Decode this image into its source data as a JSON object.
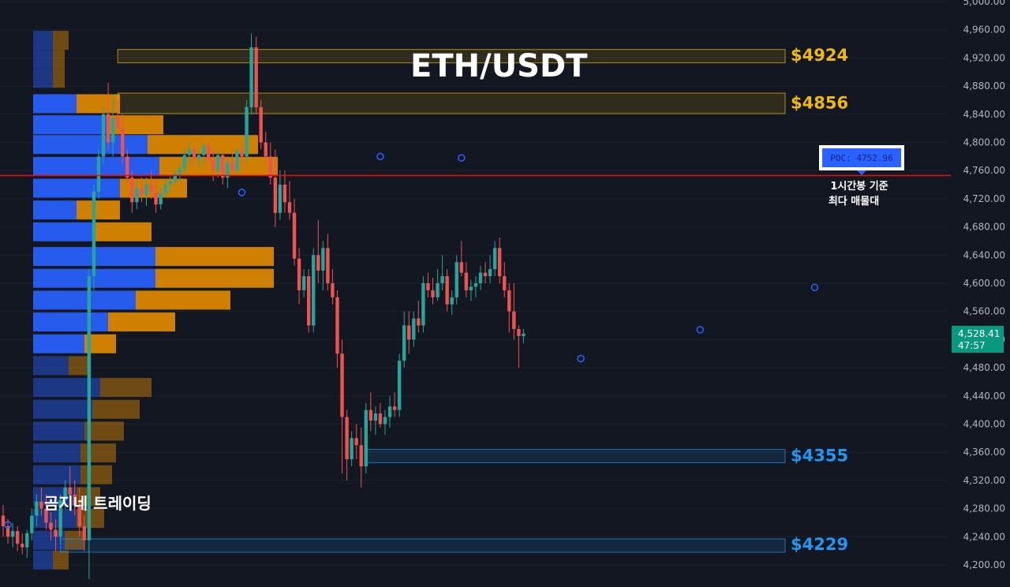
{
  "chart_data": {
    "type": "candlestick",
    "title": "ETH/USDT",
    "ylim": [
      4191,
      5000
    ],
    "y_ticks": [
      "4,200.00",
      "4,240.00",
      "4,280.00",
      "4,320.00",
      "4,360.00",
      "4,400.00",
      "4,440.00",
      "4,480.00",
      "4,520.00",
      "4,560.00",
      "4,600.00",
      "4,640.00",
      "4,680.00",
      "4,720.00",
      "4,760.00",
      "4,800.00",
      "4,840.00",
      "4,880.00",
      "4,920.00",
      "4,960.00",
      "5,000.00"
    ],
    "y_tick_values": [
      4200,
      4240,
      4280,
      4320,
      4360,
      4400,
      4440,
      4480,
      4520,
      4560,
      4600,
      4640,
      4680,
      4720,
      4760,
      4800,
      4840,
      4880,
      4920,
      4960,
      5000
    ],
    "current_price": {
      "price": "4,528.41",
      "countdown": "47:57",
      "value": 4528.41
    },
    "poc": {
      "label": "POC: 4752.96",
      "value": 4752.96,
      "note_line1": "1시간봉 기준",
      "note_line2": "최다 매물대"
    },
    "levels": [
      {
        "label": "$4924",
        "value": 4924,
        "low": 4913,
        "high": 4932,
        "color": "#f0b90b",
        "start": 24
      },
      {
        "label": "$4856",
        "value": 4856,
        "low": 4841,
        "high": 4870,
        "color": "#f0b90b",
        "start": 24
      },
      {
        "label": "$4355",
        "value": 4355,
        "low": 4345,
        "high": 4364,
        "color": "#2196f3",
        "start": 76
      },
      {
        "label": "$4229",
        "value": 4229,
        "low": 4218,
        "high": 4237,
        "color": "#2196f3",
        "start": 12
      }
    ],
    "candles": [
      [
        4270,
        4285,
        4240,
        4255
      ],
      [
        4255,
        4265,
        4230,
        4240
      ],
      [
        4240,
        4260,
        4225,
        4248
      ],
      [
        4248,
        4255,
        4220,
        4230
      ],
      [
        4230,
        4245,
        4215,
        4225
      ],
      [
        4225,
        4250,
        4210,
        4245
      ],
      [
        4245,
        4280,
        4235,
        4270
      ],
      [
        4270,
        4300,
        4255,
        4290
      ],
      [
        4290,
        4310,
        4270,
        4280
      ],
      [
        4280,
        4300,
        4250,
        4260
      ],
      [
        4260,
        4275,
        4235,
        4250
      ],
      [
        4250,
        4265,
        4220,
        4240
      ],
      [
        4240,
        4300,
        4230,
        4292
      ],
      [
        4292,
        4320,
        4280,
        4310
      ],
      [
        4310,
        4340,
        4290,
        4300
      ],
      [
        4300,
        4320,
        4270,
        4285
      ],
      [
        4285,
        4310,
        4240,
        4255
      ],
      [
        4255,
        4270,
        4220,
        4235
      ],
      [
        4235,
        4620,
        4180,
        4610
      ],
      [
        4610,
        4740,
        4590,
        4730
      ],
      [
        4730,
        4790,
        4720,
        4780
      ],
      [
        4780,
        4850,
        4770,
        4840
      ],
      [
        4840,
        4885,
        4790,
        4800
      ],
      [
        4800,
        4865,
        4780,
        4835
      ],
      [
        4835,
        4860,
        4810,
        4820
      ],
      [
        4820,
        4840,
        4770,
        4780
      ],
      [
        4780,
        4790,
        4740,
        4750
      ],
      [
        4750,
        4760,
        4700,
        4715
      ],
      [
        4715,
        4745,
        4705,
        4735
      ],
      [
        4735,
        4750,
        4715,
        4725
      ],
      [
        4725,
        4750,
        4710,
        4740
      ],
      [
        4740,
        4760,
        4720,
        4730
      ],
      [
        4730,
        4745,
        4700,
        4712
      ],
      [
        4712,
        4735,
        4705,
        4728
      ],
      [
        4728,
        4748,
        4722,
        4740
      ],
      [
        4740,
        4752,
        4728,
        4745
      ],
      [
        4745,
        4760,
        4738,
        4755
      ],
      [
        4755,
        4770,
        4745,
        4763
      ],
      [
        4763,
        4790,
        4755,
        4782
      ],
      [
        4782,
        4800,
        4770,
        4790
      ],
      [
        4790,
        4795,
        4770,
        4777
      ],
      [
        4777,
        4790,
        4765,
        4782
      ],
      [
        4782,
        4800,
        4770,
        4795
      ],
      [
        4795,
        4800,
        4770,
        4775
      ],
      [
        4775,
        4790,
        4745,
        4760
      ],
      [
        4760,
        4790,
        4750,
        4782
      ],
      [
        4782,
        4786,
        4740,
        4750
      ],
      [
        4750,
        4780,
        4735,
        4772
      ],
      [
        4772,
        4790,
        4755,
        4760
      ],
      [
        4760,
        4792,
        4755,
        4788
      ],
      [
        4788,
        4800,
        4770,
        4780
      ],
      [
        4780,
        4860,
        4770,
        4850
      ],
      [
        4850,
        4955,
        4840,
        4935
      ],
      [
        4935,
        4950,
        4840,
        4850
      ],
      [
        4850,
        4860,
        4790,
        4800
      ],
      [
        4800,
        4815,
        4770,
        4780
      ],
      [
        4780,
        4800,
        4740,
        4750
      ],
      [
        4750,
        4790,
        4680,
        4700
      ],
      [
        4700,
        4760,
        4690,
        4740
      ],
      [
        4740,
        4760,
        4700,
        4715
      ],
      [
        4715,
        4745,
        4690,
        4700
      ],
      [
        4700,
        4720,
        4625,
        4635
      ],
      [
        4635,
        4650,
        4570,
        4590
      ],
      [
        4590,
        4620,
        4580,
        4610
      ],
      [
        4610,
        4620,
        4530,
        4540
      ],
      [
        4540,
        4650,
        4530,
        4640
      ],
      [
        4640,
        4690,
        4600,
        4618
      ],
      [
        4618,
        4660,
        4590,
        4650
      ],
      [
        4650,
        4670,
        4590,
        4600
      ],
      [
        4600,
        4620,
        4570,
        4580
      ],
      [
        4580,
        4590,
        4480,
        4500
      ],
      [
        4500,
        4520,
        4330,
        4410
      ],
      [
        4410,
        4420,
        4320,
        4350
      ],
      [
        4350,
        4390,
        4340,
        4380
      ],
      [
        4380,
        4400,
        4350,
        4370
      ],
      [
        4370,
        4395,
        4310,
        4340
      ],
      [
        4340,
        4430,
        4330,
        4420
      ],
      [
        4420,
        4445,
        4390,
        4405
      ],
      [
        4405,
        4425,
        4385,
        4415
      ],
      [
        4415,
        4430,
        4395,
        4400
      ],
      [
        4400,
        4420,
        4385,
        4410
      ],
      [
        4410,
        4440,
        4395,
        4425
      ],
      [
        4425,
        4445,
        4410,
        4420
      ],
      [
        4420,
        4500,
        4410,
        4490
      ],
      [
        4490,
        4560,
        4480,
        4540
      ],
      [
        4540,
        4560,
        4500,
        4520
      ],
      [
        4520,
        4560,
        4510,
        4550
      ],
      [
        4550,
        4575,
        4530,
        4540
      ],
      [
        4540,
        4610,
        4530,
        4600
      ],
      [
        4600,
        4615,
        4580,
        4590
      ],
      [
        4590,
        4608,
        4570,
        4580
      ],
      [
        4580,
        4620,
        4575,
        4600
      ],
      [
        4600,
        4640,
        4590,
        4610
      ],
      [
        4610,
        4620,
        4560,
        4570
      ],
      [
        4570,
        4590,
        4555,
        4580
      ],
      [
        4580,
        4640,
        4570,
        4630
      ],
      [
        4630,
        4660,
        4610,
        4615
      ],
      [
        4615,
        4630,
        4580,
        4590
      ],
      [
        4590,
        4605,
        4575,
        4595
      ],
      [
        4595,
        4610,
        4580,
        4600
      ],
      [
        4600,
        4625,
        4590,
        4615
      ],
      [
        4615,
        4630,
        4600,
        4610
      ],
      [
        4610,
        4640,
        4600,
        4620
      ],
      [
        4620,
        4660,
        4610,
        4650
      ],
      [
        4650,
        4665,
        4600,
        4610
      ],
      [
        4610,
        4630,
        4580,
        4590
      ],
      [
        4590,
        4600,
        4530,
        4560
      ],
      [
        4560,
        4600,
        4520,
        4535
      ],
      [
        4535,
        4540,
        4480,
        4525
      ],
      [
        4525,
        4535,
        4515,
        4528.41
      ]
    ],
    "markers": [
      [
        1,
        4257
      ],
      [
        50,
        4729
      ],
      [
        79,
        4780
      ],
      [
        96,
        4778
      ],
      [
        121,
        4493
      ],
      [
        146,
        4534
      ],
      [
        170,
        4594
      ]
    ],
    "volume_profile": [
      {
        "price": 4945,
        "buy": 0.25,
        "sell": 0.2,
        "dim": true
      },
      {
        "price": 4918,
        "buy": 0.25,
        "sell": 0.15,
        "dim": true
      },
      {
        "price": 4891,
        "buy": 0.25,
        "sell": 0.15,
        "dim": true
      },
      {
        "price": 4855,
        "buy": 0.55,
        "sell": 0.55,
        "dim": false
      },
      {
        "price": 4825,
        "buy": 0.95,
        "sell": 0.7,
        "dim": false
      },
      {
        "price": 4797,
        "buy": 1.45,
        "sell": 1.4,
        "dim": false
      },
      {
        "price": 4766,
        "buy": 1.6,
        "sell": 1.5,
        "dim": false
      },
      {
        "price": 4735,
        "buy": 1.1,
        "sell": 0.85,
        "dim": false
      },
      {
        "price": 4704,
        "buy": 0.55,
        "sell": 0.55,
        "dim": false
      },
      {
        "price": 4673,
        "buy": 0.75,
        "sell": 0.75,
        "dim": false
      },
      {
        "price": 4638,
        "buy": 1.55,
        "sell": 1.5,
        "dim": false
      },
      {
        "price": 4607,
        "buy": 1.55,
        "sell": 1.5,
        "dim": false
      },
      {
        "price": 4576,
        "buy": 1.3,
        "sell": 1.2,
        "dim": false
      },
      {
        "price": 4545,
        "buy": 0.95,
        "sell": 0.85,
        "dim": false
      },
      {
        "price": 4514,
        "buy": 0.65,
        "sell": 0.4,
        "dim": false
      },
      {
        "price": 4483,
        "buy": 0.45,
        "sell": 0.25,
        "dim": true
      },
      {
        "price": 4452,
        "buy": 0.85,
        "sell": 0.65,
        "dim": true
      },
      {
        "price": 4421,
        "buy": 0.75,
        "sell": 0.6,
        "dim": true
      },
      {
        "price": 4390,
        "buy": 0.65,
        "sell": 0.5,
        "dim": true
      },
      {
        "price": 4359,
        "buy": 0.6,
        "sell": 0.45,
        "dim": true
      },
      {
        "price": 4328,
        "buy": 0.6,
        "sell": 0.4,
        "dim": true
      },
      {
        "price": 4297,
        "buy": 0.55,
        "sell": 0.3,
        "dim": true
      },
      {
        "price": 4266,
        "buy": 0.55,
        "sell": 0.35,
        "dim": true
      },
      {
        "price": 4235,
        "buy": 0.4,
        "sell": 0.25,
        "dim": true
      },
      {
        "price": 4207,
        "buy": 0.25,
        "sell": 0.2,
        "dim": true
      }
    ],
    "colors": {
      "up": "#26a69a",
      "down": "#ef5350",
      "poc_line": "#e01010",
      "vp_buy": "#2962ff",
      "vp_sell": "#e08a00",
      "background": "#131722"
    }
  },
  "branding": {
    "watermark": "곰지네 트레이딩"
  }
}
